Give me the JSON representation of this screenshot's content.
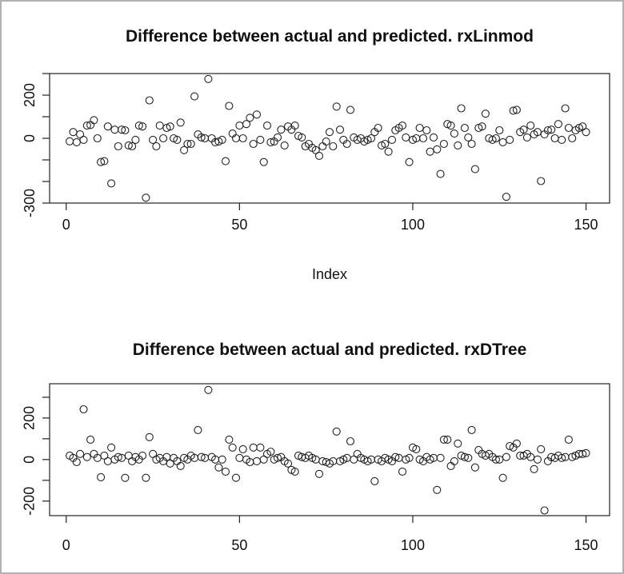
{
  "panel": {
    "background": "#ffffff",
    "border_color": "#b2b2b2",
    "axis_color": "#222222",
    "point_color": "#222222"
  },
  "chart_data": [
    {
      "type": "scatter",
      "title": "Difference between actual and predicted. rxLinmod",
      "xlabel": "Index",
      "ylabel": "",
      "marker": "open-circle",
      "grid": false,
      "legend": "none",
      "xlim": [
        -4.8,
        156.8
      ],
      "ylim": [
        -300,
        300
      ],
      "x_ticks": [
        0,
        50,
        100,
        150
      ],
      "x_tick_labels": [
        "0",
        "50",
        "100",
        "150"
      ],
      "y_ticks": [
        -300,
        -200,
        -100,
        0,
        100,
        200,
        300
      ],
      "y_tick_labels_shown": [
        -300,
        0,
        200
      ],
      "x_rule": "index = 1..150",
      "x_start": 1,
      "x_step": 1,
      "values": [
        -14,
        29,
        -18,
        18,
        -7,
        59,
        62,
        84,
        0,
        -110,
        -106,
        55,
        -209,
        40,
        -37,
        40,
        37,
        -33,
        -37,
        -7,
        59,
        55,
        -275,
        176,
        -7,
        -37,
        59,
        0,
        48,
        55,
        0,
        -7,
        73,
        -55,
        -26,
        -26,
        194,
        18,
        4,
        0,
        275,
        0,
        -18,
        -15,
        -7,
        -106,
        150,
        22,
        0,
        59,
        0,
        66,
        95,
        -26,
        110,
        -7,
        -110,
        59,
        -18,
        -15,
        4,
        40,
        -33,
        55,
        40,
        59,
        11,
        4,
        -37,
        -26,
        -44,
        -55,
        -81,
        -37,
        -15,
        29,
        -37,
        147,
        40,
        -7,
        -26,
        132,
        4,
        -7,
        0,
        -15,
        -7,
        0,
        29,
        48,
        -33,
        -26,
        -62,
        -7,
        37,
        48,
        59,
        4,
        -110,
        -7,
        0,
        48,
        0,
        37,
        -62,
        4,
        -51,
        -165,
        -26,
        66,
        59,
        22,
        -33,
        139,
        48,
        4,
        -26,
        -143,
        48,
        55,
        114,
        0,
        -7,
        0,
        37,
        -18,
        -271,
        -7,
        128,
        132,
        29,
        40,
        4,
        59,
        18,
        29,
        -198,
        18,
        37,
        40,
        0,
        66,
        -7,
        139,
        48,
        0,
        37,
        48,
        55,
        29
      ]
    },
    {
      "type": "scatter",
      "title": "Difference between actual and predicted. rxDTree",
      "xlabel": "",
      "ylabel": "",
      "marker": "open-circle",
      "grid": false,
      "legend": "none",
      "xlim": [
        -4.8,
        156.8
      ],
      "ylim": [
        -270,
        365
      ],
      "x_ticks": [
        0,
        50,
        100,
        150
      ],
      "x_tick_labels": [
        "0",
        "50",
        "100",
        "150"
      ],
      "y_ticks": [
        -200,
        -100,
        0,
        100,
        200,
        300
      ],
      "y_tick_labels_shown": [
        -200,
        0,
        200
      ],
      "x_rule": "index = 1..150",
      "x_start": 1,
      "x_step": 1,
      "values": [
        19,
        8,
        -12,
        27,
        242,
        12,
        96,
        27,
        8,
        -85,
        19,
        -8,
        58,
        0,
        12,
        8,
        -88,
        19,
        -8,
        12,
        0,
        19,
        -88,
        108,
        27,
        0,
        8,
        -8,
        12,
        -19,
        8,
        -8,
        -31,
        8,
        0,
        19,
        8,
        142,
        12,
        8,
        335,
        12,
        0,
        -38,
        0,
        -58,
        96,
        58,
        -88,
        8,
        50,
        0,
        -12,
        58,
        -8,
        58,
        0,
        27,
        38,
        0,
        8,
        12,
        -8,
        -19,
        -50,
        -58,
        19,
        12,
        8,
        19,
        8,
        0,
        -69,
        -8,
        -12,
        -19,
        -8,
        135,
        -8,
        0,
        8,
        88,
        0,
        27,
        8,
        0,
        -8,
        0,
        -104,
        0,
        -8,
        8,
        0,
        -8,
        12,
        8,
        -58,
        0,
        8,
        58,
        50,
        0,
        -8,
        12,
        0,
        8,
        -146,
        8,
        96,
        96,
        -31,
        -8,
        77,
        19,
        12,
        8,
        142,
        -38,
        46,
        27,
        19,
        27,
        12,
        0,
        0,
        -88,
        12,
        65,
        58,
        77,
        19,
        19,
        27,
        12,
        -46,
        0,
        50,
        -245,
        -8,
        12,
        8,
        19,
        8,
        12,
        96,
        12,
        19,
        27,
        27,
        31
      ]
    }
  ]
}
